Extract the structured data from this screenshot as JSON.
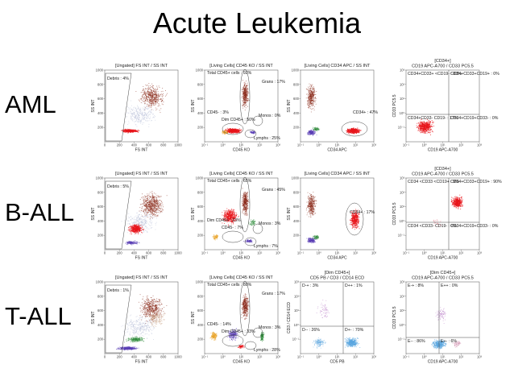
{
  "title": "Acute Leukemia",
  "rows": [
    {
      "label": "AML",
      "plots": [
        {
          "title": "[Ungated] FS INT / SS INT",
          "xlabel": "FS INT",
          "ylabel": "SS INT",
          "xticks": [
            "0",
            "200",
            "400",
            "600",
            "800",
            "1000"
          ],
          "yticks": [
            "200",
            "400",
            "600",
            "800",
            "1000"
          ],
          "gates": [
            "Debris : 4%"
          ]
        },
        {
          "title": "[Living Cells] CD45 KO / SS INT",
          "xlabel": "CD45 KO",
          "ylabel": "SS INT",
          "xticks": [
            "10⁻¹",
            "10⁰",
            "10¹",
            "10²",
            "10³"
          ],
          "yticks": [
            "200",
            "400",
            "600",
            "800",
            "1000"
          ],
          "gates": [
            "Total CD45+ cells : 92%",
            "Grans : 17%",
            "CD45- : 3%",
            "Monos : 0%",
            "Dim CD45+ : 50%",
            "Lymphs : 25%"
          ]
        },
        {
          "title": "[Living Cells] CD34 APC / SS INT",
          "xlabel": "CD34 APC",
          "ylabel": "SS INT",
          "xticks": [
            "10⁻¹",
            "10⁰",
            "10¹",
            "10²",
            "10³"
          ],
          "yticks": [
            "200",
            "400",
            "600",
            "800",
            "1000"
          ],
          "gates": [
            "CD34+ : 47%"
          ]
        },
        {
          "title": "[CD34+]",
          "title2": "CD19 APC-A700 / CD33 PC5.5",
          "xlabel": "CD19 APC-A700",
          "ylabel": "CD33 PC5.5",
          "xticks": [
            "10⁻¹",
            "10⁰",
            "10¹",
            "10²",
            "10³"
          ],
          "yticks": [
            "10⁻¹",
            "10⁰",
            "10¹",
            "10²",
            "10³"
          ],
          "gates": [
            "CD34+CD33+ <CD19- : 83%",
            "CD34+CD33+CD19+ : 0%",
            "CD34+CD33- CD19- : 17%",
            "CD34+CD19+CD33- : 0%"
          ]
        }
      ]
    },
    {
      "label": "B-ALL",
      "plots": [
        {
          "title": "[Ungated] FS INT / SS INT",
          "xlabel": "FS INT",
          "ylabel": "SS INT",
          "xticks": [
            "0",
            "200",
            "400",
            "600",
            "800",
            "1000"
          ],
          "yticks": [
            "200",
            "400",
            "600",
            "800",
            "1000"
          ],
          "gates": [
            "Debris : 5%"
          ]
        },
        {
          "title": "[Living Cells] CD45 KO / SS INT",
          "xlabel": "CD45 KO",
          "ylabel": "SS INT",
          "xticks": [
            "10⁻¹",
            "10⁰",
            "10¹",
            "10²",
            "10³"
          ],
          "yticks": [
            "200",
            "400",
            "600",
            "800",
            "1000"
          ],
          "gates": [
            "Total CD45+ cells : 65%",
            "Grans : 45%",
            "Dim CD45+ : 23%",
            "Monos : 3%",
            "CD45- : 7%",
            "Lymphs : 7%"
          ]
        },
        {
          "title": "[Living Cells] CD34 APC / SS INT",
          "xlabel": "CD34 APC",
          "ylabel": "SS INT",
          "xticks": [
            "10⁻¹",
            "10⁰",
            "10¹",
            "10²",
            "10³"
          ],
          "yticks": [
            "200",
            "400",
            "600",
            "800",
            "1000"
          ],
          "gates": [
            "CD34+ : 17%"
          ]
        },
        {
          "title": "[CD34+]",
          "title2": "CD19 APC-A700 / CD33 PC5.5",
          "xlabel": "CD19 APC-A700",
          "ylabel": "CD33 PC5.5",
          "xticks": [
            "10⁻¹",
            "10⁰",
            "10¹",
            "10²",
            "10³"
          ],
          "yticks": [
            "10⁻¹",
            "10⁰",
            "10¹",
            "10²",
            "10³"
          ],
          "gates": [
            "CD34 <CD33 <CD19+ : 9%",
            "CD34+CD33+CD19+ : 90%",
            "CD34 <CD33- CD19- : 0%",
            "CD34+CD19+CD33- : 0%"
          ]
        }
      ]
    },
    {
      "label": "T-ALL",
      "plots": [
        {
          "title": "[Ungated] FS INT / SS INT",
          "xlabel": "FS INT",
          "ylabel": "SS INT",
          "xticks": [
            "0",
            "200",
            "400",
            "600",
            "800",
            "1000"
          ],
          "yticks": [
            "200",
            "400",
            "600",
            "800",
            "1000"
          ],
          "gates": [
            "Debris : 1%"
          ]
        },
        {
          "title": "[Living Cells] CD45 KO / SS INT",
          "xlabel": "CD45 KO",
          "ylabel": "SS INT",
          "xticks": [
            "10⁻¹",
            "10⁰",
            "10¹",
            "10²",
            "10³"
          ],
          "yticks": [
            "200",
            "400",
            "600",
            "800",
            "1000"
          ],
          "gates": [
            "Total CD45+ cells : 80%",
            "Grans : 17%",
            "CD45- : 14%",
            "Monos : 3%",
            "Dim CD45+ : 33%",
            "Lymphs : 28%"
          ]
        },
        {
          "title": "[Dim CD45+]",
          "title2": "CD5 PB / CD3 / CD14 ECD",
          "xlabel": "CD5 PB",
          "ylabel": "CD3 / CD14 ECD",
          "xticks": [
            "10⁻¹",
            "10⁰",
            "10¹",
            "10²",
            "10³"
          ],
          "yticks": [
            "10⁻¹",
            "10⁰",
            "10¹",
            "10²",
            "10³"
          ],
          "gates": [
            "D-+ : 3%",
            "D++ : 1%",
            "D-- : 26%",
            "D+- : 70%"
          ]
        },
        {
          "title": "[Dim CD45+]",
          "title2": "CD19 APC-A700 / CD33 PC5.5",
          "xlabel": "CD19 APC-A700",
          "ylabel": "CD33 PC5.5",
          "xticks": [
            "10⁻¹",
            "10⁰",
            "10¹",
            "10²",
            "10³"
          ],
          "yticks": [
            "10⁻¹",
            "10⁰",
            "10¹",
            "10²",
            "10³"
          ],
          "gates": [
            "E-+ : 8%",
            "E++ : 0%",
            "E-- : 86%",
            "E+- : 6%"
          ]
        }
      ]
    }
  ],
  "colors": {
    "granulocytes": "#8b2a1a",
    "blasts": "#e8151b",
    "lymphs": "#5a3fb5",
    "monos": "#2e8b3a",
    "debris": "#9aa6c8",
    "tcells": "#5aa6e0",
    "orange": "#e8a020",
    "gate": "#444444"
  }
}
